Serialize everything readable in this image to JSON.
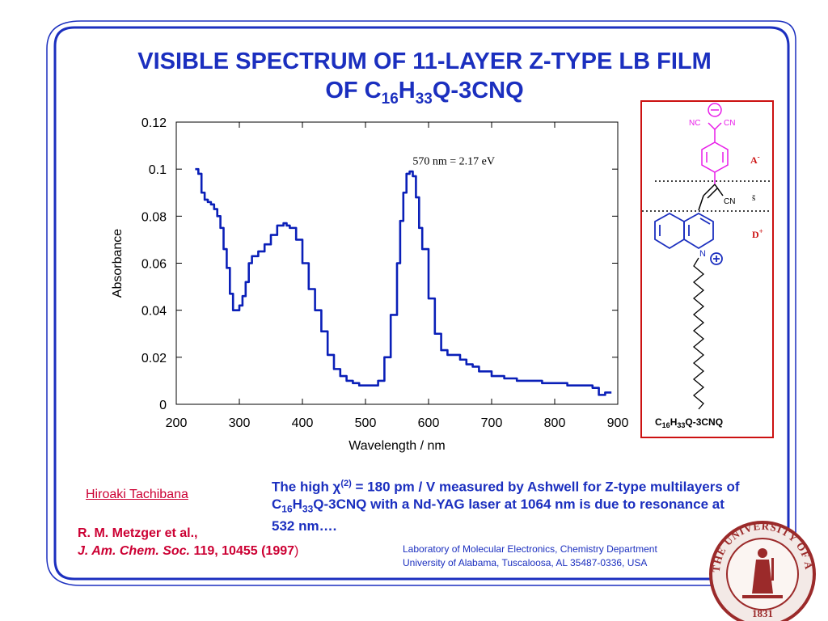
{
  "slide": {
    "title_line1": "VISIBLE SPECTRUM OF 11-LAYER Z-TYPE LB FILM",
    "title_line2_prefix": "OF C",
    "title_line2_sub1": "16",
    "title_line2_mid": "H",
    "title_line2_sub2": "33",
    "title_line2_suffix": "Q-3CNQ",
    "colors": {
      "frame": "#1b2fbf",
      "title": "#1b2fbf",
      "curve": "#0a1fb8",
      "reference": "#cc0033",
      "box": "#cc1111",
      "acceptor": "#e81ce8",
      "donor": "#1b2fbf"
    }
  },
  "chart_data": {
    "type": "line",
    "xlabel": "Wavelength / nm",
    "ylabel": "Absorbance",
    "xlim": [
      200,
      900
    ],
    "ylim": [
      0,
      0.12
    ],
    "xticks": [
      200,
      300,
      400,
      500,
      600,
      700,
      800,
      900
    ],
    "yticks": [
      0,
      0.02,
      0.04,
      0.06,
      0.08,
      0.1,
      0.12
    ],
    "ytick_labels": [
      "0",
      "0.02",
      "0.04",
      "0.06",
      "0.08",
      "0.1",
      "0.12"
    ],
    "annotation": "570 nm = 2.17 eV",
    "series": [
      {
        "x": [
          230,
          235,
          240,
          245,
          250,
          255,
          260,
          265,
          270,
          275,
          280,
          285,
          290,
          295,
          300,
          305,
          310,
          315,
          320,
          330,
          340,
          350,
          360,
          370,
          375,
          380,
          390,
          400,
          410,
          420,
          430,
          440,
          450,
          460,
          470,
          480,
          490,
          500,
          510,
          520,
          530,
          540,
          550,
          555,
          560,
          565,
          570,
          575,
          580,
          585,
          590,
          600,
          610,
          620,
          630,
          640,
          650,
          660,
          670,
          680,
          700,
          720,
          740,
          760,
          780,
          800,
          820,
          840,
          860,
          870,
          880,
          890
        ],
        "y": [
          0.1,
          0.098,
          0.09,
          0.087,
          0.086,
          0.085,
          0.083,
          0.08,
          0.075,
          0.066,
          0.058,
          0.047,
          0.04,
          0.04,
          0.042,
          0.046,
          0.052,
          0.06,
          0.063,
          0.065,
          0.068,
          0.072,
          0.076,
          0.077,
          0.076,
          0.075,
          0.07,
          0.06,
          0.049,
          0.04,
          0.031,
          0.021,
          0.015,
          0.012,
          0.01,
          0.009,
          0.008,
          0.008,
          0.008,
          0.01,
          0.02,
          0.038,
          0.06,
          0.078,
          0.09,
          0.098,
          0.099,
          0.097,
          0.088,
          0.075,
          0.066,
          0.045,
          0.03,
          0.023,
          0.021,
          0.021,
          0.019,
          0.017,
          0.016,
          0.014,
          0.012,
          0.011,
          0.01,
          0.01,
          0.009,
          0.009,
          0.008,
          0.008,
          0.007,
          0.004,
          0.005,
          0.005
        ]
      }
    ]
  },
  "molecule": {
    "nc_label": "NC",
    "cn_label": "CN",
    "cn2_label": "CN",
    "n_label": "N",
    "acceptor_label": "A",
    "acceptor_sup": "-",
    "bridge_label": "š",
    "donor_label": "D",
    "donor_sup": "+",
    "caption_prefix": "C",
    "caption_sub1": "16",
    "caption_mid": "H",
    "caption_sub2": "33",
    "caption_suffix": "Q-3CNQ"
  },
  "text": {
    "chi_prefix": "The high ",
    "chi_symbol": "χ",
    "chi_sup": "(2)",
    "chi_rest": " = 180 pm / V measured by Ashwell for Z-type multilayers of C",
    "sub1": "16",
    "h": "H",
    "sub2": "33",
    "rest2": "Q-3CNQ with a Nd-YAG laser at 1064 nm is due to resonance at 532 nm….",
    "author_link": "Hiroaki Tachibana",
    "ref_line1": "R. M. Metzger et al.,",
    "ref_journal": "J. Am. Chem. Soc.",
    "ref_rest": " 119, 10455 (1997",
    "ref_close": ")",
    "lab_line1": "Laboratory of Molecular Electronics, Chemistry Department",
    "lab_line2": "University of Alabama, Tuscaloosa, AL 35487-0336, USA"
  },
  "seal": {
    "text_top": "THE UNIVERSITY OF ALABAMA",
    "year": "1831"
  }
}
